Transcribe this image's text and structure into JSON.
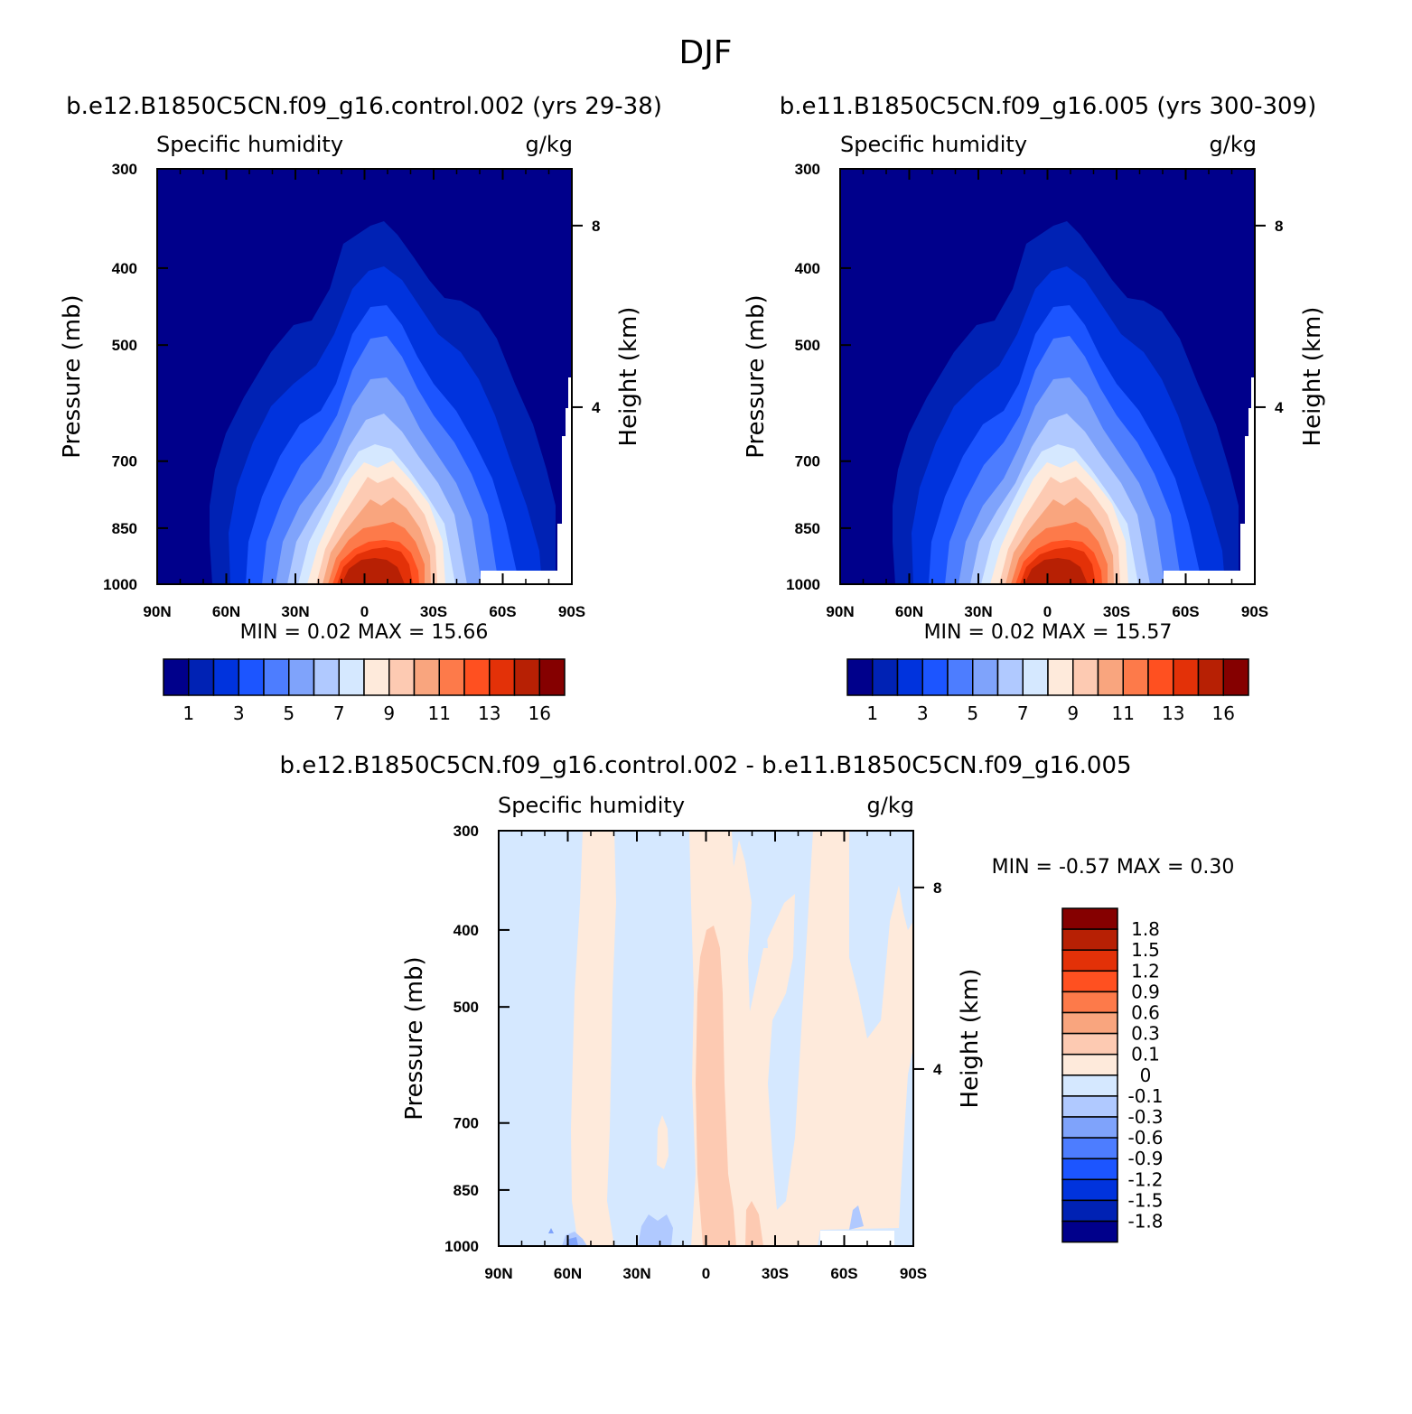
{
  "figure": {
    "title": "DJF"
  },
  "panels": [
    {
      "id": "p1",
      "title": "b.e12.B1850C5CN.f09_g16.control.002 (yrs 29-38)",
      "left_label": "Specific humidity",
      "right_label": "g/kg",
      "ylabel": "Pressure (mb)",
      "y2label": "Height (km)",
      "min_max": "MIN =    0.02   MAX =    15.66",
      "xticks": [
        "90N",
        "60N",
        "30N",
        "0",
        "30S",
        "60S",
        "90S"
      ],
      "yticks": [
        "300",
        "400",
        "500",
        "700",
        "850",
        "1000"
      ],
      "y2ticks": [
        "8",
        "4"
      ]
    },
    {
      "id": "p2",
      "title": "b.e11.B1850C5CN.f09_g16.005 (yrs 300-309)",
      "left_label": "Specific humidity",
      "right_label": "g/kg",
      "ylabel": "Pressure (mb)",
      "y2label": "Height (km)",
      "min_max": "MIN =    0.02   MAX =    15.57",
      "xticks": [
        "90N",
        "60N",
        "30N",
        "0",
        "30S",
        "60S",
        "90S"
      ],
      "yticks": [
        "300",
        "400",
        "500",
        "700",
        "850",
        "1000"
      ],
      "y2ticks": [
        "8",
        "4"
      ]
    },
    {
      "id": "p3",
      "title": "b.e12.B1850C5CN.f09_g16.control.002 - b.e11.B1850C5CN.f09_g16.005",
      "left_label": "Specific humidity",
      "right_label": "g/kg",
      "ylabel": "Pressure (mb)",
      "y2label": "Height (km)",
      "min_max": "MIN =   -0.57   MAX =    0.30",
      "xticks": [
        "90N",
        "60N",
        "30N",
        "0",
        "30S",
        "60S",
        "90S"
      ],
      "yticks": [
        "300",
        "400",
        "500",
        "700",
        "850",
        "1000"
      ],
      "y2ticks": [
        "8",
        "4"
      ]
    }
  ],
  "colorbar_main": {
    "colors": [
      "#00008b",
      "#0022b4",
      "#0033dd",
      "#1c55ff",
      "#4d7dff",
      "#7fa3fb",
      "#b0c9ff",
      "#d5e8ff",
      "#feeadb",
      "#fdcab2",
      "#f9a57e",
      "#fd7a4a",
      "#ff5020",
      "#e33108",
      "#b72004",
      "#850000"
    ],
    "labels": [
      "1",
      "3",
      "5",
      "7",
      "9",
      "11",
      "13",
      "16"
    ]
  },
  "colorbar_diff": {
    "colors": [
      "#850000",
      "#b72004",
      "#e33108",
      "#ff5020",
      "#fd7a4a",
      "#f9a57e",
      "#fdcab2",
      "#feeadb",
      "#d5e8ff",
      "#b0c9ff",
      "#7fa3fb",
      "#4d7dff",
      "#1c55ff",
      "#0033dd",
      "#0022b4",
      "#00008b"
    ],
    "labels": [
      "1.8",
      "1.5",
      "1.2",
      "0.9",
      "0.6",
      "0.3",
      "0.1",
      "0",
      "-0.1",
      "-0.3",
      "-0.6",
      "-0.9",
      "-1.2",
      "-1.5",
      "-1.8"
    ]
  },
  "chart_data": [
    {
      "type": "heatmap",
      "title": "b.e12.B1850C5CN.f09_g16.control.002 (yrs 29-38)",
      "variable": "Specific humidity",
      "units": "g/kg",
      "x": [
        "90N",
        "60N",
        "30N",
        "0",
        "30S",
        "60S",
        "90S"
      ],
      "xlim": [
        90,
        -90
      ],
      "ylabel": "Pressure (mb)",
      "y_ticks": [
        300,
        400,
        500,
        700,
        850,
        1000
      ],
      "ylim": [
        300,
        1000
      ],
      "y2label": "Height (km)",
      "y2_ticks": [
        8,
        4
      ],
      "min": 0.02,
      "max": 15.66,
      "levels": [
        0.5,
        1,
        2,
        3,
        4,
        5,
        6,
        7,
        8,
        9,
        10,
        11,
        12,
        13,
        14,
        16
      ],
      "max_location": {
        "lat": -5,
        "pressure": 1000
      }
    },
    {
      "type": "heatmap",
      "title": "b.e11.B1850C5CN.f09_g16.005 (yrs 300-309)",
      "variable": "Specific humidity",
      "units": "g/kg",
      "x": [
        "90N",
        "60N",
        "30N",
        "0",
        "30S",
        "60S",
        "90S"
      ],
      "xlim": [
        90,
        -90
      ],
      "ylabel": "Pressure (mb)",
      "y_ticks": [
        300,
        400,
        500,
        700,
        850,
        1000
      ],
      "ylim": [
        300,
        1000
      ],
      "y2label": "Height (km)",
      "y2_ticks": [
        8,
        4
      ],
      "min": 0.02,
      "max": 15.57,
      "levels": [
        0.5,
        1,
        2,
        3,
        4,
        5,
        6,
        7,
        8,
        9,
        10,
        11,
        12,
        13,
        14,
        16
      ],
      "max_location": {
        "lat": -5,
        "pressure": 1000
      }
    },
    {
      "type": "heatmap",
      "title": "b.e12.B1850C5CN.f09_g16.control.002 - b.e11.B1850C5CN.f09_g16.005",
      "variable": "Specific humidity",
      "units": "g/kg",
      "x": [
        "90N",
        "60N",
        "30N",
        "0",
        "30S",
        "60S",
        "90S"
      ],
      "xlim": [
        90,
        -90
      ],
      "ylabel": "Pressure (mb)",
      "y_ticks": [
        300,
        400,
        500,
        700,
        850,
        1000
      ],
      "ylim": [
        300,
        1000
      ],
      "y2label": "Height (km)",
      "y2_ticks": [
        8,
        4
      ],
      "min": -0.57,
      "max": 0.3,
      "levels": [
        -1.8,
        -1.5,
        -1.2,
        -0.9,
        -0.6,
        -0.3,
        -0.1,
        0,
        0.1,
        0.3,
        0.6,
        0.9,
        1.2,
        1.5,
        1.8
      ],
      "bands": [
        {
          "lat_from": 90,
          "lat_to": 57,
          "sign": "negative"
        },
        {
          "lat_from": 57,
          "lat_to": 40,
          "sign": "positive"
        },
        {
          "lat_from": 40,
          "lat_to": 7,
          "sign": "negative"
        },
        {
          "lat_from": 7,
          "lat_to": -48,
          "sign": "positive"
        },
        {
          "lat_from": -48,
          "lat_to": -90,
          "sign": "negative"
        }
      ],
      "strongest_positive": {
        "lat": 0,
        "range_mb": [
          480,
          1000
        ],
        "level": "0.1 to 0.3"
      }
    }
  ]
}
